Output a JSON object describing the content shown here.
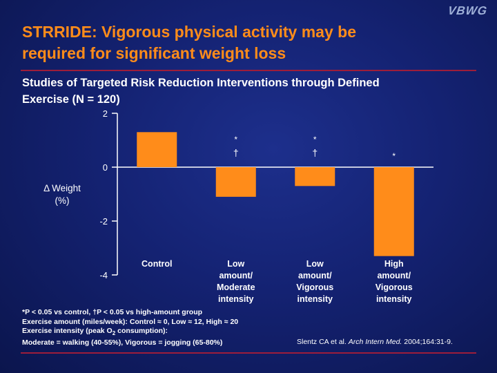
{
  "logo": "VBWG",
  "title_line1": "STRRIDE: Vigorous physical activity may be",
  "title_line2": "required for significant weight loss",
  "subtitle_line1": "Studies of Targeted Risk Reduction Interventions through Defined",
  "subtitle_line2": "Exercise (N = 120)",
  "ylabel_line1": "Δ Weight",
  "ylabel_line2": "(%)",
  "chart_data": {
    "type": "bar",
    "categories": [
      [
        "Control"
      ],
      [
        "Low",
        "amount/",
        "Moderate",
        "intensity"
      ],
      [
        "Low",
        "amount/",
        "Vigorous",
        "intensity"
      ],
      [
        "High",
        "amount/",
        "Vigorous",
        "intensity"
      ]
    ],
    "values": [
      1.3,
      -1.1,
      -0.7,
      -3.3
    ],
    "significance_marks": [
      [],
      [
        "*",
        "†"
      ],
      [
        "*",
        "†"
      ],
      [
        "*"
      ]
    ],
    "ylim": [
      -4,
      2
    ],
    "yticks": [
      2,
      0,
      -2,
      -4
    ],
    "ytick_labels": [
      "2",
      "0",
      "-2",
      "-4"
    ],
    "bar_color": "#ff8c1a",
    "axis_color": "#ffffff"
  },
  "footnotes": {
    "line1": "*P < 0.05 vs control, †P < 0.05 vs high-amount group",
    "line2": "Exercise amount (miles/week): Control ≈ 0, Low ≈ 12, High ≈ 20",
    "line3_a": "Exercise intensity (peak O",
    "line3_sub": "2",
    "line3_b": " consumption):",
    "line4": "Moderate = walking (40-55%), Vigorous = jogging (65-80%)"
  },
  "citation": {
    "authors": "Slentz CA et al. ",
    "journal": "Arch Intern Med.",
    "details": " 2004;164:31-9."
  },
  "colors": {
    "title": "#ff8c1a",
    "rule": "#9e1d3a",
    "background": "#142272"
  }
}
